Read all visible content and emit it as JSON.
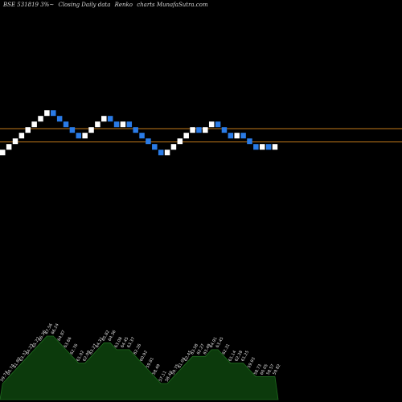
{
  "header": {
    "symbol": "BSE 531819 3%~",
    "title": "Closing Daily data",
    "type": "Renko",
    "site": "charts MunafaSutra.com"
  },
  "chart_data": {
    "type": "renko",
    "box_size": 1.7,
    "reference_lines": [
      {
        "value": 66.1,
        "color": "#c27a1a"
      },
      {
        "value": 62.1,
        "color": "#c27a1a"
      }
    ],
    "colors": {
      "up": "#ffffff",
      "down": "#2a7be6",
      "volume_fill": "#0c3a0c",
      "volume_line": "#1f6d1f",
      "grid_line": "#c27a1a"
    },
    "bricks": [
      {
        "dir": "up",
        "value": 59.74
      },
      {
        "dir": "up",
        "value": 60.74
      },
      {
        "dir": "up",
        "value": 61.8
      },
      {
        "dir": "up",
        "value": 63.33
      },
      {
        "dir": "up",
        "value": 64.23
      },
      {
        "dir": "up",
        "value": 65.22
      },
      {
        "dir": "up",
        "value": 66.36
      },
      {
        "dir": "up",
        "value": 67.56
      },
      {
        "dir": "down",
        "value": 66.24
      },
      {
        "dir": "down",
        "value": 64.87
      },
      {
        "dir": "down",
        "value": 63.66
      },
      {
        "dir": "down",
        "value": 62.76
      },
      {
        "dir": "down",
        "value": 61.02
      },
      {
        "dir": "up",
        "value": 62.09
      },
      {
        "dir": "up",
        "value": 63.27
      },
      {
        "dir": "up",
        "value": 64.31
      },
      {
        "dir": "up",
        "value": 65.82
      },
      {
        "dir": "down",
        "value": 64.36
      },
      {
        "dir": "down",
        "value": 63.08
      },
      {
        "dir": "up",
        "value": 64.45
      },
      {
        "dir": "down",
        "value": 63.37
      },
      {
        "dir": "down",
        "value": 62.26
      },
      {
        "dir": "down",
        "value": 60.92
      },
      {
        "dir": "down",
        "value": 59.81
      },
      {
        "dir": "down",
        "value": 58.49
      },
      {
        "dir": "down",
        "value": 57.11
      },
      {
        "dir": "up",
        "value": 58.48
      },
      {
        "dir": "up",
        "value": 59.75
      },
      {
        "dir": "up",
        "value": 61.04
      },
      {
        "dir": "up",
        "value": 62.45
      },
      {
        "dir": "up",
        "value": 63.58
      },
      {
        "dir": "down",
        "value": 62.27
      },
      {
        "dir": "up",
        "value": 63.49
      },
      {
        "dir": "up",
        "value": 64.91
      },
      {
        "dir": "down",
        "value": 63.45
      },
      {
        "dir": "down",
        "value": 62.31
      },
      {
        "dir": "down",
        "value": 61.14
      },
      {
        "dir": "up",
        "value": 62.28
      },
      {
        "dir": "down",
        "value": 61.25
      },
      {
        "dir": "down",
        "value": 59.93
      },
      {
        "dir": "down",
        "value": 58.73
      },
      {
        "dir": "up",
        "value": 60.05
      },
      {
        "dir": "down",
        "value": 58.57
      },
      {
        "dir": "up",
        "value": 59.82
      }
    ]
  }
}
